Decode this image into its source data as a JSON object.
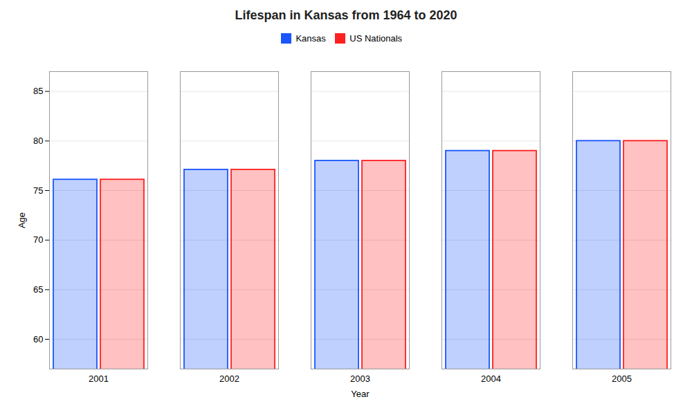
{
  "chart_data": {
    "type": "bar",
    "title": "Lifespan in Kansas from 1964 to 2020",
    "xlabel": "Year",
    "ylabel": "Age",
    "categories": [
      "2001",
      "2002",
      "2003",
      "2004",
      "2005"
    ],
    "series": [
      {
        "name": "Kansas",
        "color": "#1a55ff",
        "values": [
          76.1,
          77.1,
          78.0,
          79.0,
          80.0
        ]
      },
      {
        "name": "US Nationals",
        "color": "#ff2020",
        "values": [
          76.1,
          77.1,
          78.0,
          79.0,
          80.0
        ]
      }
    ],
    "ylim": [
      57,
      87
    ],
    "yticks": [
      60,
      65,
      70,
      75,
      80,
      85
    ],
    "grid": true,
    "legend": "top"
  }
}
